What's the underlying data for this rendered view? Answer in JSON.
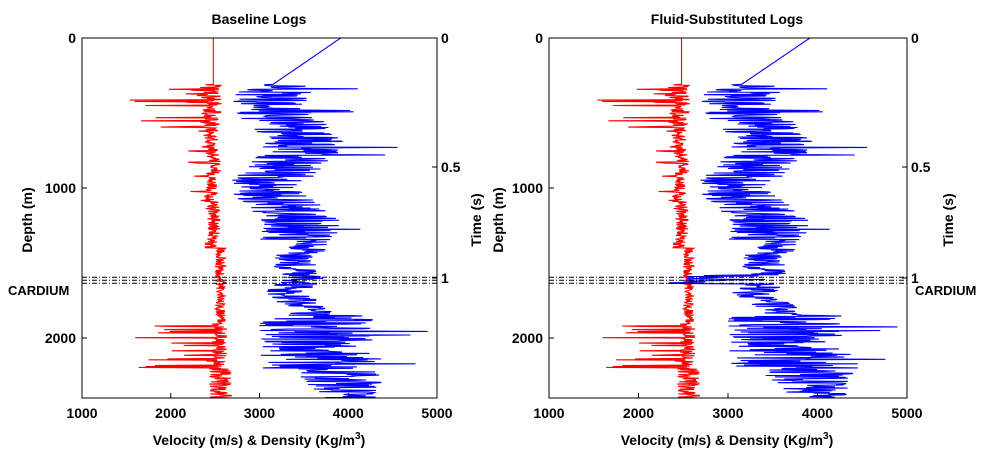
{
  "chart_data": [
    {
      "type": "line",
      "title": "Baseline Logs",
      "xlabel": "Velocity (m/s) & Density (Kg/m",
      "xlabel_sup": "3",
      "xlabel_end": ")",
      "ylabel_left": "Depth (m)",
      "ylabel_right": "Time (s)",
      "xlim": [
        1000,
        5000
      ],
      "ylim": [
        0,
        2400
      ],
      "x_ticks": [
        "1000",
        "2000",
        "3000",
        "4000",
        "5000"
      ],
      "y_ticks": [
        "0",
        "1000",
        "2000"
      ],
      "y_tick_values": [
        0,
        1000,
        2000
      ],
      "time_ticks": [
        "0",
        "0.5",
        "1"
      ],
      "time_tick_depths": [
        0,
        860,
        1600
      ],
      "marker_label": "CARDIUM",
      "marker_depths": [
        1595,
        1615,
        1635
      ],
      "fluid_substituted": false,
      "series": [
        {
          "color": "#ff0000",
          "kind": "density",
          "base": 2480
        },
        {
          "color": "#0000ff",
          "kind": "velocity",
          "base": 3300
        }
      ]
    },
    {
      "type": "line",
      "title": "Fluid-Substituted Logs",
      "xlabel": "Velocity (m/s) & Density (Kg/m",
      "xlabel_sup": "3",
      "xlabel_end": ")",
      "ylabel_left": "Depth (m)",
      "ylabel_right": "Time (s)",
      "xlim": [
        1000,
        5000
      ],
      "ylim": [
        0,
        2400
      ],
      "x_ticks": [
        "1000",
        "2000",
        "3000",
        "4000",
        "5000"
      ],
      "y_ticks": [
        "0",
        "1000",
        "2000"
      ],
      "y_tick_values": [
        0,
        1000,
        2000
      ],
      "time_ticks": [
        "0",
        "0.5",
        "1"
      ],
      "time_tick_depths": [
        0,
        860,
        1600
      ],
      "marker_label": "CARDIUM",
      "marker_depths": [
        1595,
        1615,
        1635
      ],
      "fluid_substituted": true,
      "series": [
        {
          "color": "#ff0000",
          "kind": "density",
          "base": 2480
        },
        {
          "color": "#0000ff",
          "kind": "velocity",
          "base": 3300
        }
      ]
    }
  ]
}
